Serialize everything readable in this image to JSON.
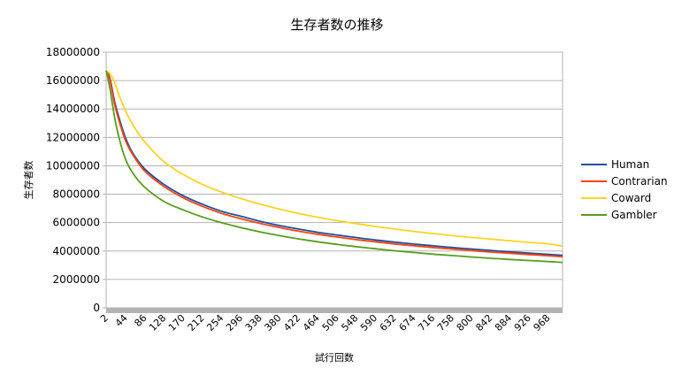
{
  "chart_data": {
    "type": "line",
    "title": "生存者数の推移",
    "xlabel": "試行回数",
    "ylabel": "生存者数",
    "ylim": [
      0,
      18000000
    ],
    "y_ticks": [
      "0",
      "2000000",
      "4000000",
      "6000000",
      "8000000",
      "10000000",
      "12000000",
      "14000000",
      "16000000",
      "18000000"
    ],
    "x_range": [
      2,
      1000
    ],
    "x_ticks": [
      "2",
      "44",
      "86",
      "128",
      "170",
      "212",
      "254",
      "296",
      "338",
      "380",
      "422",
      "464",
      "506",
      "548",
      "590",
      "632",
      "674",
      "716",
      "758",
      "800",
      "842",
      "884",
      "926",
      "968"
    ],
    "grid": "horizontal",
    "legend_position": "right",
    "series": [
      {
        "name": "Human",
        "color": "#1f4e9c",
        "x": [
          2,
          10,
          20,
          30,
          44,
          60,
          86,
          128,
          170,
          212,
          254,
          296,
          338,
          380,
          422,
          464,
          506,
          548,
          590,
          632,
          674,
          716,
          758,
          800,
          842,
          884,
          926,
          968,
          1000
        ],
        "values": [
          16700000,
          16200000,
          14600000,
          13400000,
          12000000,
          10900000,
          9800000,
          8700000,
          7900000,
          7300000,
          6800000,
          6450000,
          6100000,
          5800000,
          5550000,
          5320000,
          5130000,
          4950000,
          4780000,
          4630000,
          4490000,
          4370000,
          4250000,
          4140000,
          4040000,
          3940000,
          3850000,
          3770000,
          3700000
        ]
      },
      {
        "name": "Contrarian",
        "color": "#ff420e",
        "x": [
          2,
          10,
          20,
          30,
          44,
          60,
          86,
          128,
          170,
          212,
          254,
          296,
          338,
          380,
          422,
          464,
          506,
          548,
          590,
          632,
          674,
          716,
          758,
          800,
          842,
          884,
          926,
          968,
          1000
        ],
        "values": [
          16700000,
          16100000,
          14400000,
          13200000,
          11800000,
          10800000,
          9650000,
          8550000,
          7750000,
          7150000,
          6650000,
          6280000,
          5950000,
          5660000,
          5400000,
          5180000,
          4990000,
          4810000,
          4650000,
          4500000,
          4370000,
          4250000,
          4140000,
          4030000,
          3930000,
          3840000,
          3750000,
          3670000,
          3600000
        ]
      },
      {
        "name": "Coward",
        "color": "#ffd320",
        "x": [
          2,
          10,
          20,
          30,
          44,
          60,
          86,
          128,
          170,
          212,
          254,
          296,
          338,
          380,
          422,
          464,
          506,
          548,
          590,
          632,
          674,
          716,
          758,
          800,
          842,
          884,
          926,
          968,
          1000
        ],
        "values": [
          16700000,
          16500000,
          15900000,
          15000000,
          13900000,
          12900000,
          11700000,
          10300000,
          9400000,
          8700000,
          8150000,
          7700000,
          7300000,
          6960000,
          6650000,
          6380000,
          6140000,
          5930000,
          5730000,
          5550000,
          5380000,
          5230000,
          5090000,
          4960000,
          4840000,
          4720000,
          4610000,
          4510000,
          4350000
        ]
      },
      {
        "name": "Gambler",
        "color": "#579d1c",
        "x": [
          2,
          10,
          20,
          30,
          44,
          60,
          86,
          128,
          170,
          212,
          254,
          296,
          338,
          380,
          422,
          464,
          506,
          548,
          590,
          632,
          674,
          716,
          758,
          800,
          842,
          884,
          926,
          968,
          1000
        ],
        "values": [
          16700000,
          15500000,
          13500000,
          12000000,
          10500000,
          9500000,
          8500000,
          7500000,
          6900000,
          6400000,
          6000000,
          5650000,
          5350000,
          5090000,
          4860000,
          4650000,
          4470000,
          4310000,
          4160000,
          4020000,
          3900000,
          3780000,
          3680000,
          3580000,
          3490000,
          3410000,
          3330000,
          3260000,
          3200000
        ]
      }
    ]
  }
}
